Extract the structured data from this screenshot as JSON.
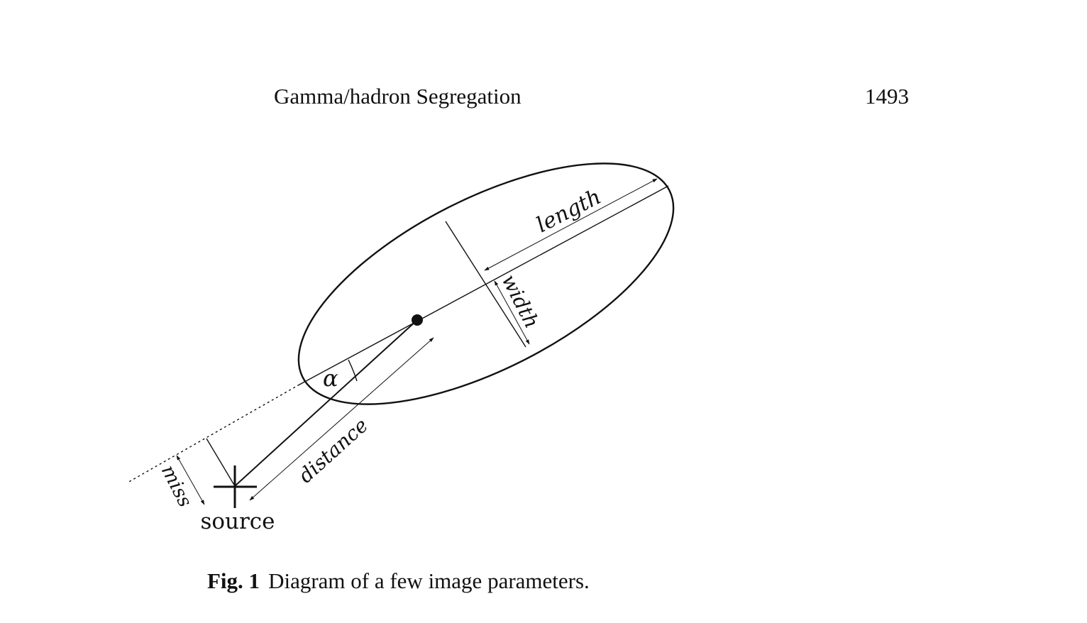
{
  "header": {
    "running_title": "Gamma/hadron Segregation",
    "page_number": "1493"
  },
  "figure": {
    "labels": {
      "length": "length",
      "width": "width",
      "alpha": "α",
      "distance": "distance",
      "miss": "miss",
      "source": "source"
    },
    "caption": {
      "label": "Fig. 1",
      "text": "Diagram of a few image parameters."
    }
  }
}
